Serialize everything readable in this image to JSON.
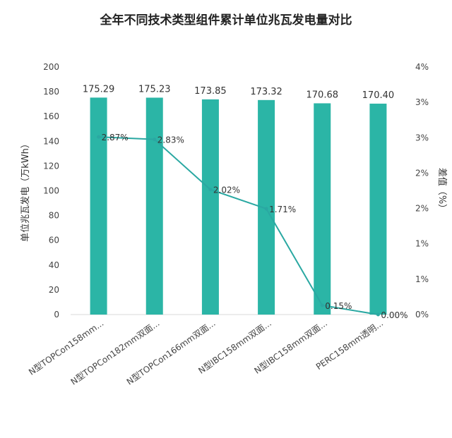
{
  "chart_data": {
    "type": "bar",
    "title": "全年不同技术类型组件累计单位兆瓦发电量对比",
    "categories": [
      "N型TOPCon158mm...",
      "N型TOPCon182mm双面...",
      "N型TOPCon166mm双面...",
      "N型IBC158mm双面...",
      "N型IBC158mm双面...",
      "PERC158mm透明..."
    ],
    "ylabel": "单位兆瓦发电（万kWh）",
    "y2label": "差值（%）",
    "ylim": [
      0,
      200
    ],
    "y_ticks": [
      "0",
      "20",
      "40",
      "60",
      "80",
      "100",
      "120",
      "140",
      "160",
      "180",
      "200"
    ],
    "y2lim": [
      0,
      4
    ],
    "y2_ticks": [
      "0%",
      "1%",
      "1%",
      "2%",
      "2%",
      "3%",
      "3%",
      "4%"
    ],
    "series": [
      {
        "type": "bar",
        "values": [
          175.29,
          175.23,
          173.85,
          173.32,
          170.68,
          170.4
        ],
        "labels": [
          "175.29",
          "175.23",
          "173.85",
          "173.32",
          "170.68",
          "170.40"
        ],
        "color": "#2bb5a6"
      },
      {
        "type": "line",
        "values": [
          2.87,
          2.83,
          2.02,
          1.71,
          0.15,
          0.0
        ],
        "labels": [
          "2.87%",
          "2.83%",
          "2.02%",
          "1.71%",
          "0.15%",
          "0.00%"
        ],
        "color": "#2aa8a2"
      }
    ],
    "grid": false,
    "legend": "none"
  }
}
